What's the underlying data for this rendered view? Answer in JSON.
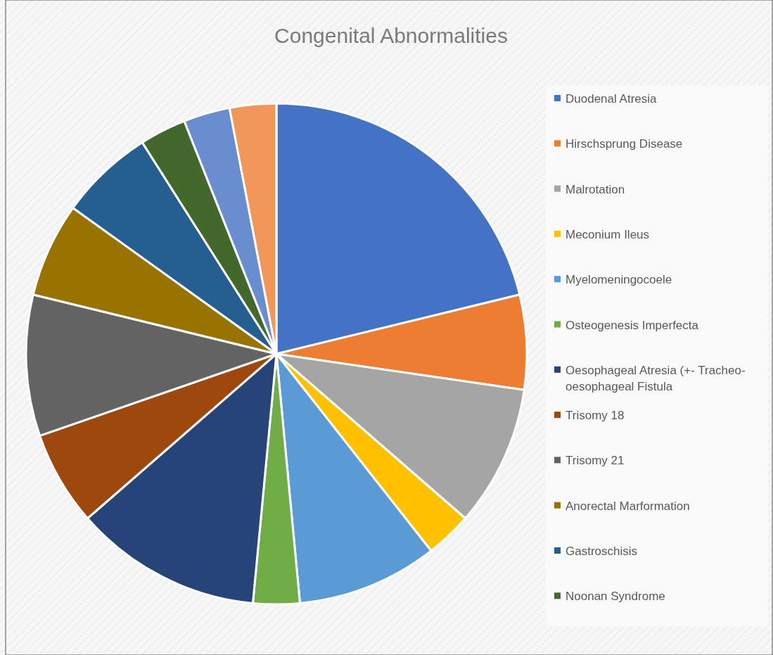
{
  "chart_data": {
    "type": "pie",
    "title": "Congenital Abnormalities",
    "categories": [
      "Duodenal Atresia",
      "Hirschsprung Disease",
      "Malrotation",
      "Meconium Ileus",
      "Myelomeningocoele",
      "Osteogenesis Imperfecta",
      "Oesophageal Atresia (+- Tracheo-oesophageal Fistula",
      "Trisomy 18",
      "Trisomy 21",
      "Anorectal Marformation",
      "Gastroschisis",
      "Noonan Syndrome",
      null,
      null
    ],
    "values": [
      21.2,
      6.1,
      9.1,
      3.0,
      9.1,
      3.0,
      12.1,
      6.1,
      9.1,
      6.1,
      6.1,
      3.0,
      3.0,
      3.0
    ],
    "colors": [
      "#4472c4",
      "#ed7d31",
      "#a5a5a5",
      "#ffc000",
      "#5b9bd5",
      "#70ad47",
      "#264478",
      "#9e480e",
      "#636363",
      "#997300",
      "#255e91",
      "#43682b",
      "#698ed0",
      "#f1975a"
    ],
    "legend": "right"
  }
}
